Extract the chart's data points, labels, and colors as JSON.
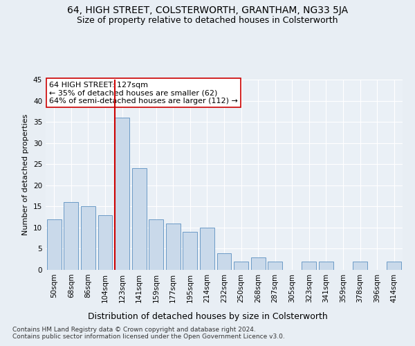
{
  "title": "64, HIGH STREET, COLSTERWORTH, GRANTHAM, NG33 5JA",
  "subtitle": "Size of property relative to detached houses in Colsterworth",
  "xlabel": "Distribution of detached houses by size in Colsterworth",
  "ylabel": "Number of detached properties",
  "footnote1": "Contains HM Land Registry data © Crown copyright and database right 2024.",
  "footnote2": "Contains public sector information licensed under the Open Government Licence v3.0.",
  "bin_labels": [
    "50sqm",
    "68sqm",
    "86sqm",
    "104sqm",
    "123sqm",
    "141sqm",
    "159sqm",
    "177sqm",
    "195sqm",
    "214sqm",
    "232sqm",
    "250sqm",
    "268sqm",
    "287sqm",
    "305sqm",
    "323sqm",
    "341sqm",
    "359sqm",
    "378sqm",
    "396sqm",
    "414sqm"
  ],
  "values": [
    12,
    16,
    15,
    13,
    36,
    24,
    12,
    11,
    9,
    10,
    4,
    2,
    3,
    2,
    0,
    2,
    2,
    0,
    2,
    0,
    2
  ],
  "bar_color": "#c9d9ea",
  "bar_edge_color": "#5a8fc0",
  "highlight_index": 4,
  "highlight_line_color": "#cc0000",
  "annotation_line1": "64 HIGH STREET: 127sqm",
  "annotation_line2": "← 35% of detached houses are smaller (62)",
  "annotation_line3": "64% of semi-detached houses are larger (112) →",
  "annotation_box_color": "#ffffff",
  "annotation_box_edge_color": "#cc0000",
  "ylim": [
    0,
    45
  ],
  "yticks": [
    0,
    5,
    10,
    15,
    20,
    25,
    30,
    35,
    40,
    45
  ],
  "bg_color": "#e8eef4",
  "plot_bg_color": "#eaf0f6",
  "grid_color": "#ffffff",
  "title_fontsize": 10,
  "subtitle_fontsize": 9,
  "xlabel_fontsize": 9,
  "ylabel_fontsize": 8,
  "tick_fontsize": 7.5,
  "annotation_fontsize": 8,
  "footnote_fontsize": 6.5
}
